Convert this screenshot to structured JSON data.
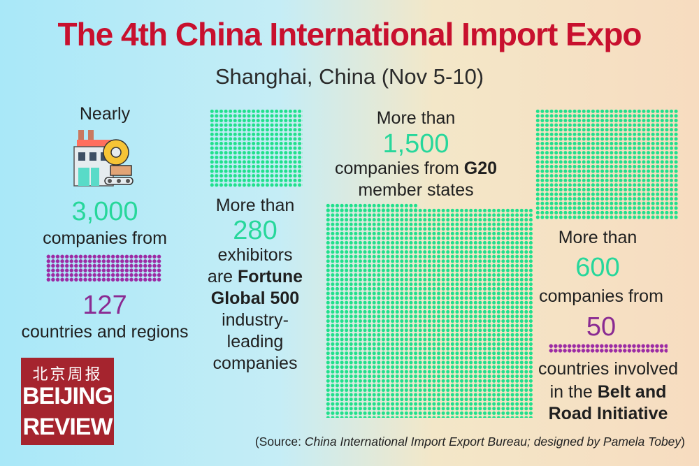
{
  "title": "The 4th China International Import Expo",
  "subtitle": "Shanghai, China (Nov 5-10)",
  "block1": {
    "prefix": "Nearly",
    "number": "3,000",
    "line": "companies from",
    "number2": "127",
    "line2": "countries and regions",
    "icon": "factory-gear-icon"
  },
  "block2": {
    "prefix": "More than",
    "number": "280",
    "line1": "exhibitors",
    "line2_pre": "are",
    "line2_bold": "Fortune",
    "line3_bold": "Global 500",
    "line4": "industry-",
    "line5": "leading",
    "line6": "companies"
  },
  "block3": {
    "prefix": "More than",
    "number": "1,500",
    "line1_pre": "companies from",
    "line1_bold": "G20",
    "line2": "member states"
  },
  "block4": {
    "prefix": "More than",
    "number": "600",
    "line1": "companies from",
    "number2": "50",
    "line2": "countries involved",
    "line3_pre": "in the",
    "line3_bold": "Belt and",
    "line4_bold": "Road Initiative"
  },
  "logo": {
    "chinese": "北京周报",
    "line1": "BEIJING",
    "line2": "REVIEW"
  },
  "source": {
    "pre": "(Source:",
    "italic": "China International Import Export Bureau; designed by Pamela Tobey",
    "post": ")"
  },
  "colors": {
    "title": "#c8102e",
    "green": "#27d79b",
    "purple": "#8a2a92",
    "logo_bg": "#a5242e"
  }
}
